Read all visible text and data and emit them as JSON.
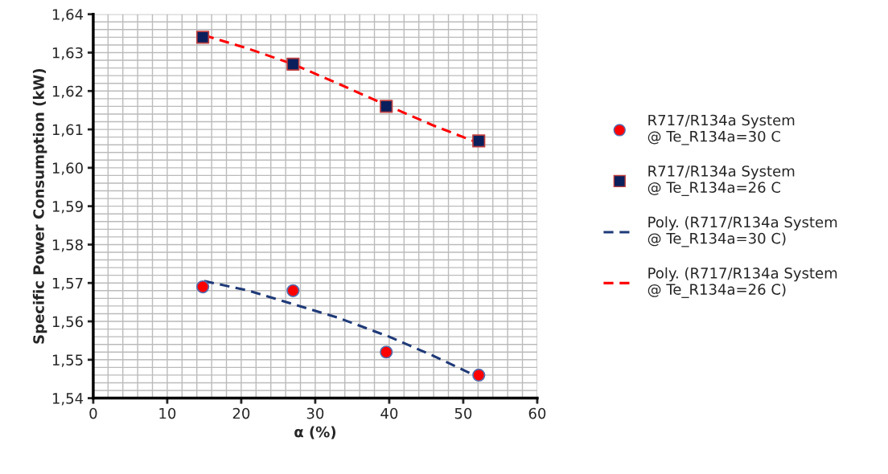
{
  "chart_data": {
    "type": "scatter",
    "xlabel": "α (%)",
    "ylabel": "Specific Power Consumption (kW)",
    "xlim": [
      0,
      60
    ],
    "xticks": [
      0,
      10,
      20,
      30,
      40,
      50,
      60
    ],
    "ylim": [
      1.54,
      1.64
    ],
    "yticks": [
      {
        "value": 1.54,
        "label": "1,54"
      },
      {
        "value": 1.55,
        "label": "1,55"
      },
      {
        "value": 1.56,
        "label": "1,56"
      },
      {
        "value": 1.57,
        "label": "1,57"
      },
      {
        "value": 1.58,
        "label": "1,58"
      },
      {
        "value": 1.59,
        "label": "1,59"
      },
      {
        "value": 1.6,
        "label": "1,60"
      },
      {
        "value": 1.61,
        "label": "1,61"
      },
      {
        "value": 1.62,
        "label": "1,62"
      },
      {
        "value": 1.63,
        "label": "1,63"
      },
      {
        "value": 1.64,
        "label": "1,64"
      }
    ],
    "grid": true,
    "legend": "right",
    "series": [
      {
        "name": "R717/R134a System @ Te_R134a=30 C",
        "marker": "circle",
        "color": "#ff0000",
        "x": [
          14.8,
          27.0,
          39.6,
          52.1
        ],
        "values": [
          1.569,
          1.568,
          1.552,
          1.546
        ]
      },
      {
        "name": "R717/R134a System @ Te_R134a=26 C",
        "marker": "square",
        "color": "#0a1f5c",
        "x": [
          14.8,
          27.0,
          39.6,
          52.1
        ],
        "values": [
          1.634,
          1.627,
          1.616,
          1.607
        ]
      },
      {
        "name": "Poly. (R717/R134a System @ Te_R134a=30 C)",
        "type": "line",
        "line_style": "dashed",
        "color": "#1f3a78",
        "x": [
          15,
          21,
          27,
          33,
          40,
          46,
          52
        ],
        "values": [
          1.5705,
          1.568,
          1.5645,
          1.561,
          1.556,
          1.551,
          1.5455
        ]
      },
      {
        "name": "Poly. (R717/R134a System @ Te_R134a=26 C)",
        "type": "line",
        "line_style": "dashed",
        "color": "#ff0000",
        "x": [
          15,
          21,
          27,
          33,
          40,
          46,
          52
        ],
        "values": [
          1.6345,
          1.631,
          1.627,
          1.622,
          1.616,
          1.611,
          1.6065
        ]
      }
    ]
  }
}
